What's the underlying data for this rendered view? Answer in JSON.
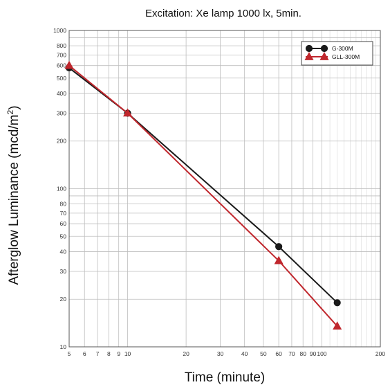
{
  "chart_data": {
    "type": "line",
    "title": "Excitation: Xe lamp 1000 lx, 5min.",
    "xlabel": "Time (minute)",
    "ylabel": "Afterglow Luminance (mcd/m",
    "ylabel_sup": "2",
    "x_scale": "log",
    "y_scale": "log",
    "xlim": [
      5,
      200
    ],
    "ylim": [
      10,
      1000
    ],
    "x_ticks": [
      5,
      6,
      7,
      8,
      9,
      10,
      20,
      30,
      40,
      50,
      60,
      70,
      80,
      90,
      100,
      200
    ],
    "x_tick_labels": [
      "5",
      "6",
      "7",
      "8",
      "9",
      "10",
      "20",
      "30",
      "40",
      "50",
      "60",
      "70",
      "80",
      "90",
      "100",
      "200"
    ],
    "y_ticks": [
      10,
      20,
      30,
      40,
      50,
      60,
      70,
      80,
      100,
      200,
      300,
      400,
      500,
      600,
      700,
      800,
      1000
    ],
    "y_tick_labels": [
      "10",
      "20",
      "30",
      "40",
      "50",
      "60",
      "70",
      "80",
      "100",
      "200",
      "300",
      "400",
      "500",
      "600",
      "700",
      "800",
      "1000"
    ],
    "grid": true,
    "legend_position": "top-right",
    "series": [
      {
        "name": "G-300M",
        "color": "#1a1a1a",
        "marker": "circle",
        "x": [
          5,
          10,
          60,
          120
        ],
        "y": [
          580,
          300,
          43,
          19
        ]
      },
      {
        "name": "GLL-300M",
        "color": "#c0272d",
        "marker": "triangle",
        "x": [
          5,
          10,
          60,
          120
        ],
        "y": [
          600,
          300,
          35,
          13.5
        ]
      }
    ]
  }
}
